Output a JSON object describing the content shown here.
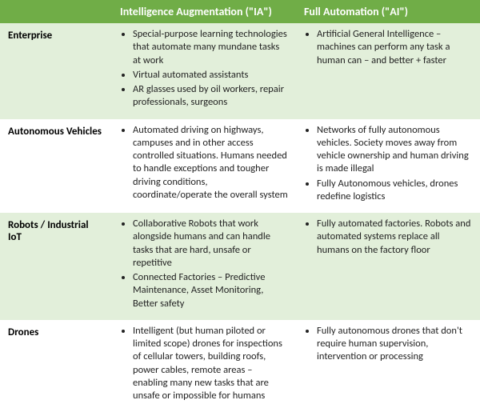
{
  "colors": {
    "header_bg": "#70ad47",
    "band_light": "#e2efda",
    "band_white": "#ffffff",
    "text": "#222222"
  },
  "header": {
    "blank": "",
    "col1": "Intelligence Augmentation (\"IA\")",
    "col2": "Full Automation (\"AI\")"
  },
  "rows": [
    {
      "label": "Enterprise",
      "ia": [
        "Special-purpose learning technologies that automate many mundane tasks at work",
        "Virtual automated assistants",
        "AR glasses used by oil workers, repair professionals, surgeons"
      ],
      "ai": [
        "Artificial General Intelligence – machines can perform any task a human can – and better + faster"
      ]
    },
    {
      "label": "Autonomous Vehicles",
      "ia": [
        "Automated driving on highways, campuses and in other access controlled situations. Humans needed to handle exceptions and tougher driving conditions, coordinate/operate the overall system"
      ],
      "ai": [
        "Networks of fully autonomous vehicles. Society moves away from vehicle ownership and human driving is made illegal",
        "Fully Autonomous vehicles, drones redefine logistics"
      ]
    },
    {
      "label": "Robots / Industrial IoT",
      "ia": [
        "Collaborative Robots that work alongside humans and can handle tasks that are hard, unsafe or repetitive",
        "Connected Factories – Predictive Maintenance, Asset Monitoring, Better safety"
      ],
      "ai": [
        "Fully automated factories. Robots and automated systems replace all humans on the factory floor"
      ]
    },
    {
      "label": "Drones",
      "ia": [
        "Intelligent (but human piloted or limited scope) drones for inspections of cellular towers, building roofs, power cables, remote areas – enabling many new tasks that are unsafe or impossible for humans"
      ],
      "ai": [
        "Fully autonomous drones that don't require human supervision, intervention or processing"
      ]
    }
  ]
}
